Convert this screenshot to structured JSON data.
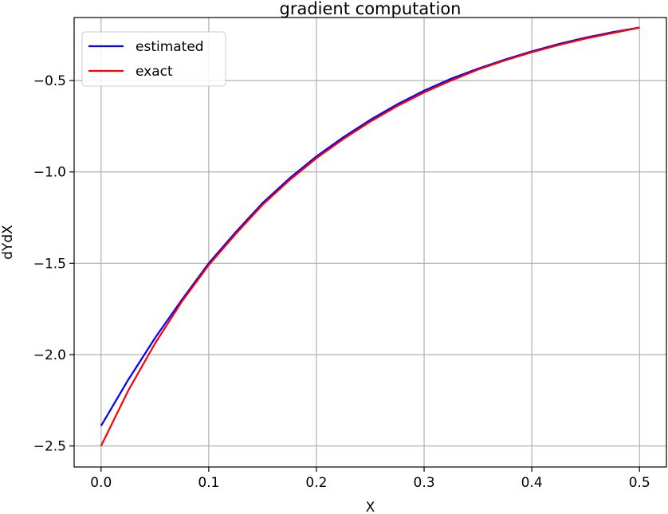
{
  "chart_data": {
    "type": "line",
    "title": "gradient computation",
    "xlabel": "X",
    "ylabel": "dYdX",
    "xlim": [
      -0.025,
      0.525
    ],
    "ylim": [
      -2.615,
      -0.155
    ],
    "grid": true,
    "legend_position": "top-left",
    "x_ticks": [
      0.0,
      0.1,
      0.2,
      0.3,
      0.4,
      0.5
    ],
    "x_tick_labels": [
      "0.0",
      "0.1",
      "0.2",
      "0.3",
      "0.4",
      "0.5"
    ],
    "y_ticks": [
      -2.5,
      -2.0,
      -1.5,
      -1.0,
      -0.5
    ],
    "y_tick_labels": [
      "−2.5",
      "−2.0",
      "−1.5",
      "−1.0",
      "−0.5"
    ],
    "series": [
      {
        "name": "estimated",
        "color": "#0000ff",
        "x": [
          0.0,
          0.025,
          0.05,
          0.075,
          0.1,
          0.125,
          0.15,
          0.175,
          0.2,
          0.225,
          0.25,
          0.275,
          0.3,
          0.325,
          0.35,
          0.375,
          0.4,
          0.425,
          0.45,
          0.475,
          0.5
        ],
        "y": [
          -2.39,
          -2.14,
          -1.91,
          -1.7,
          -1.5,
          -1.33,
          -1.17,
          -1.035,
          -0.915,
          -0.81,
          -0.715,
          -0.63,
          -0.555,
          -0.49,
          -0.435,
          -0.385,
          -0.34,
          -0.3,
          -0.265,
          -0.235,
          -0.21
        ]
      },
      {
        "name": "exact",
        "color": "#ff0000",
        "x": [
          0.0,
          0.025,
          0.05,
          0.075,
          0.1,
          0.125,
          0.15,
          0.175,
          0.2,
          0.225,
          0.25,
          0.275,
          0.3,
          0.325,
          0.35,
          0.375,
          0.4,
          0.425,
          0.45,
          0.475,
          0.5
        ],
        "y": [
          -2.5,
          -2.2,
          -1.94,
          -1.71,
          -1.51,
          -1.34,
          -1.18,
          -1.045,
          -0.925,
          -0.82,
          -0.725,
          -0.64,
          -0.565,
          -0.5,
          -0.44,
          -0.39,
          -0.345,
          -0.305,
          -0.27,
          -0.24,
          -0.21
        ]
      }
    ]
  }
}
